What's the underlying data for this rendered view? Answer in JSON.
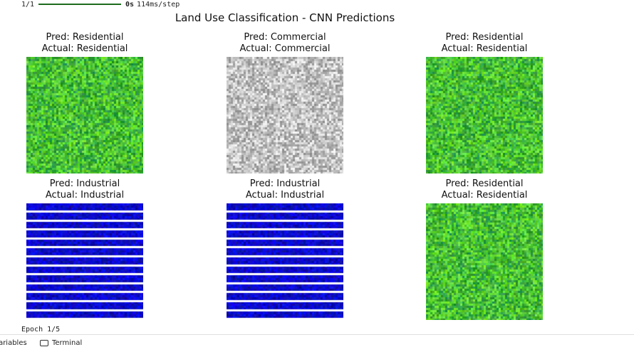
{
  "progress": {
    "step": "1/1",
    "fraction": 1.0,
    "elapsed": "0s",
    "per_step": "114ms/step",
    "bar_color": "#1e6b1e"
  },
  "figure": {
    "title": "Land Use Classification - CNN Predictions",
    "panels": [
      {
        "pred": "Pred: Residential",
        "actual": "Actual: Residential",
        "texture": "residential"
      },
      {
        "pred": "Pred: Commercial",
        "actual": "Actual: Commercial",
        "texture": "commercial"
      },
      {
        "pred": "Pred: Residential",
        "actual": "Actual: Residential",
        "texture": "residential"
      },
      {
        "pred": "Pred: Industrial",
        "actual": "Actual: Industrial",
        "texture": "industrial"
      },
      {
        "pred": "Pred: Industrial",
        "actual": "Actual: Industrial",
        "texture": "industrial"
      },
      {
        "pred": "Pred: Residential",
        "actual": "Actual: Residential",
        "texture": "residential"
      }
    ]
  },
  "log": {
    "epoch": "Epoch 1/5"
  },
  "bottom_bar": {
    "variables": "Variables",
    "terminal": "Terminal"
  },
  "colors": {
    "residential": "#3cc43c",
    "commercial": "#b4b4b4",
    "industrial": "#0a0ad2"
  }
}
